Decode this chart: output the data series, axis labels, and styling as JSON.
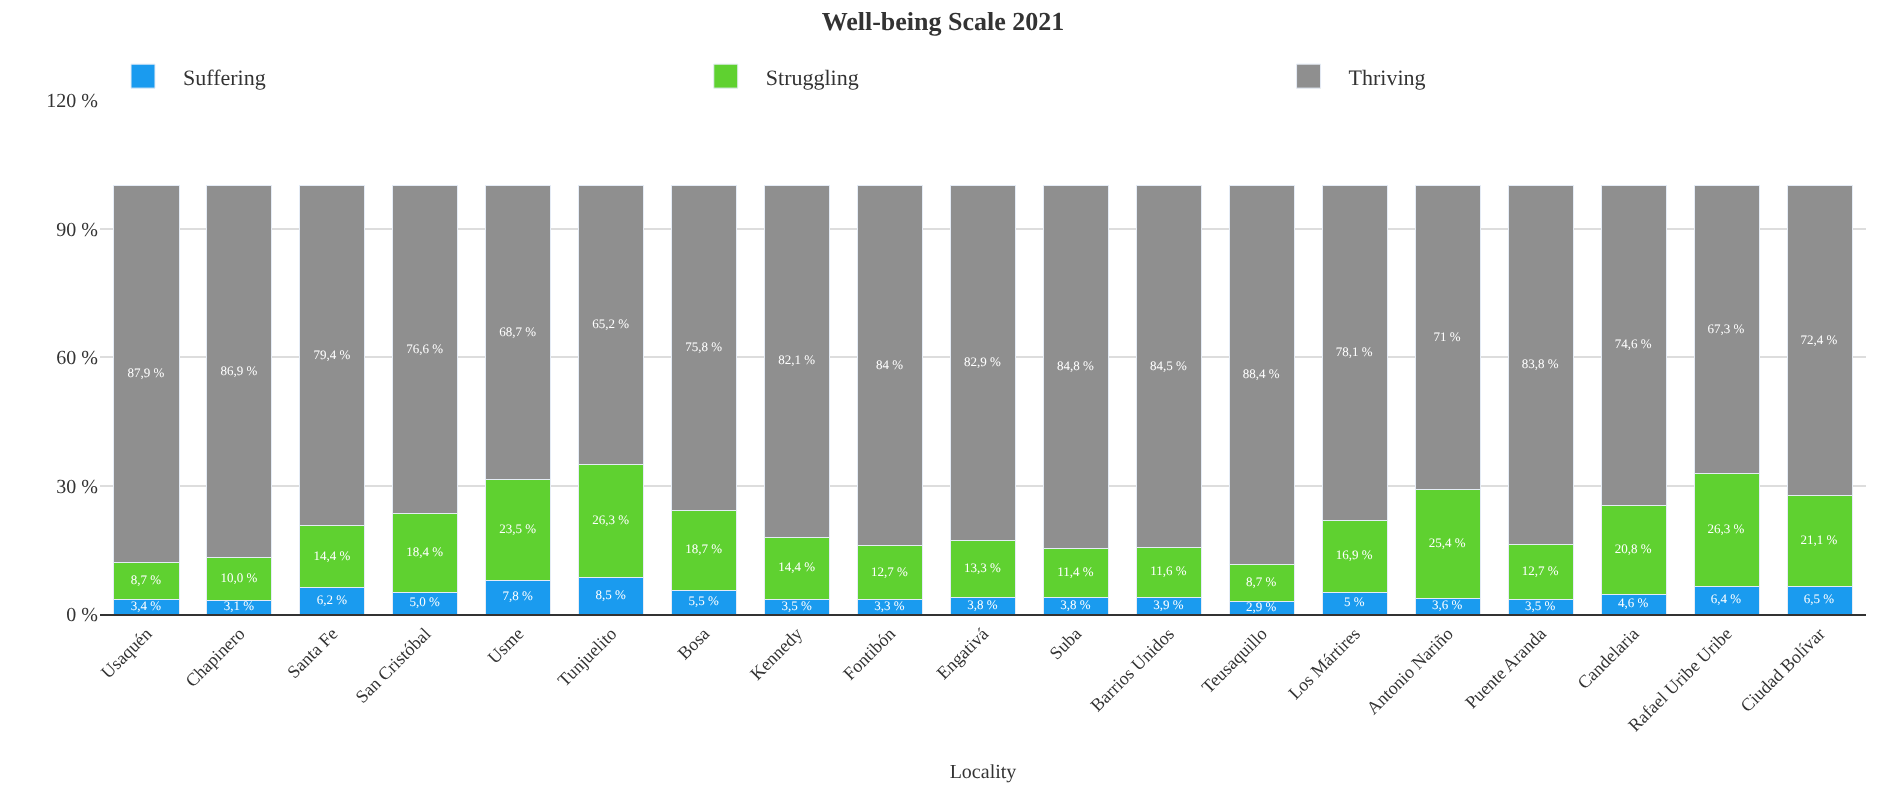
{
  "chart_data": {
    "type": "bar",
    "stacked": true,
    "title": "Well-being Scale 2021",
    "xlabel": "Locality",
    "categories": [
      "Usaquén",
      "Chapinero",
      "Santa Fe",
      "San Cristóbal",
      "Usme",
      "Tunjuelito",
      "Bosa",
      "Kennedy",
      "Fontibón",
      "Engativá",
      "Suba",
      "Barrios Unidos",
      "Teusaquillo",
      "Los Mártires",
      "Antonio Nariño",
      "Puente Aranda",
      "Candelaria",
      "Rafael Uribe Uribe",
      "Ciudad Bolívar"
    ],
    "series": [
      {
        "name": "Suffering",
        "color": "#1a9bef",
        "values": [
          3.4,
          3.1,
          6.2,
          5.0,
          7.8,
          8.5,
          5.5,
          3.5,
          3.3,
          3.8,
          3.8,
          3.9,
          2.9,
          5,
          3.6,
          3.5,
          4.6,
          6.4,
          6.5
        ],
        "value_labels": [
          "3,4 %",
          "3,1 %",
          "6,2 %",
          "5,0 %",
          "7,8 %",
          "8,5 %",
          "5,5 %",
          "3,5 %",
          "3,3 %",
          "3,8 %",
          "3,8 %",
          "3,9 %",
          "2,9 %",
          "5 %",
          "3,6 %",
          "3,5 %",
          "4,6 %",
          "6,4 %",
          "6,5 %"
        ]
      },
      {
        "name": "Struggling",
        "color": "#5fd130",
        "values": [
          8.7,
          10.0,
          14.4,
          18.4,
          23.5,
          26.3,
          18.7,
          14.4,
          12.7,
          13.3,
          11.4,
          11.6,
          8.7,
          16.9,
          25.4,
          12.7,
          20.8,
          26.3,
          21.1
        ],
        "value_labels": [
          "8,7 %",
          "10,0 %",
          "14,4 %",
          "18,4 %",
          "23,5 %",
          "26,3 %",
          "18,7 %",
          "14,4 %",
          "12,7 %",
          "13,3 %",
          "11,4 %",
          "11,6 %",
          "8,7 %",
          "16,9 %",
          "25,4 %",
          "12,7 %",
          "20,8 %",
          "26,3 %",
          "21,1 %"
        ]
      },
      {
        "name": "Thriving",
        "color": "#8f8f8f",
        "values": [
          87.9,
          86.9,
          79.4,
          76.6,
          68.7,
          65.2,
          75.8,
          82.1,
          84,
          82.9,
          84.8,
          84.5,
          88.4,
          78.1,
          71,
          83.8,
          74.6,
          67.3,
          72.4
        ],
        "value_labels": [
          "87,9 %",
          "86,9 %",
          "79,4 %",
          "76,6 %",
          "68,7 %",
          "65,2 %",
          "75,8 %",
          "82,1 %",
          "84 %",
          "82,9 %",
          "84,8 %",
          "84,5 %",
          "88,4 %",
          "78,1 %",
          "71 %",
          "83,8 %",
          "74,6 %",
          "67,3 %",
          "72,4 %"
        ]
      }
    ],
    "ylim": [
      0,
      120
    ],
    "yticks": [
      {
        "value": 0,
        "label": "0 %"
      },
      {
        "value": 30,
        "label": "30 %"
      },
      {
        "value": 60,
        "label": "60 %"
      },
      {
        "value": 90,
        "label": "90 %"
      },
      {
        "value": 120,
        "label": "120 %"
      }
    ],
    "grid": "y",
    "legend": "top"
  }
}
